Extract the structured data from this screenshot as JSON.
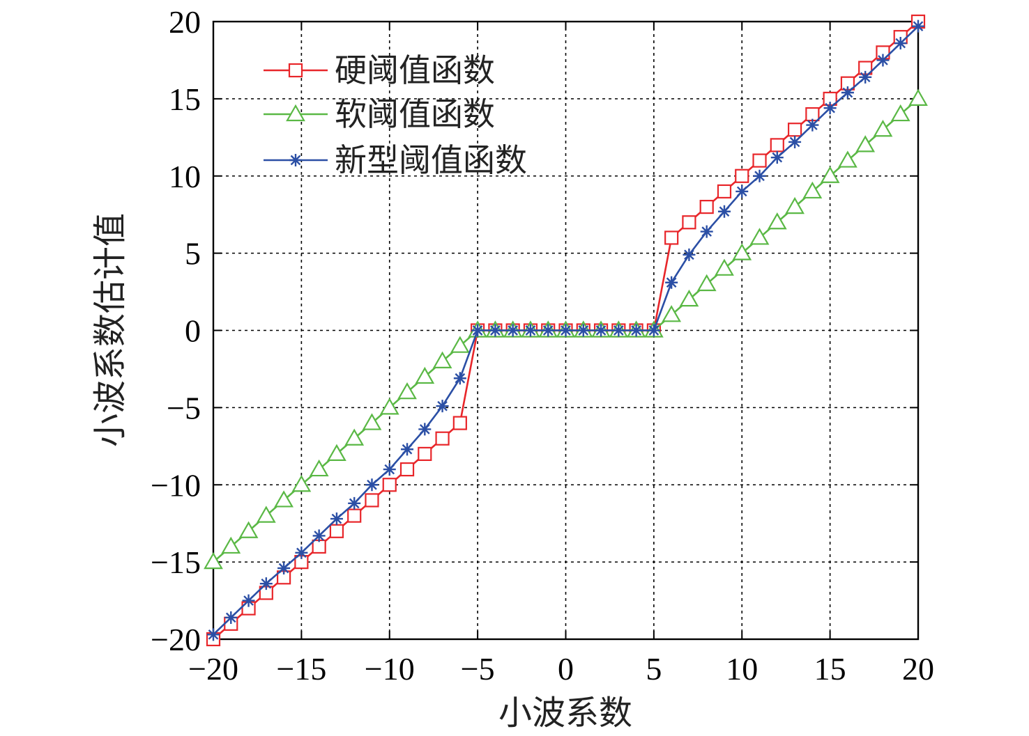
{
  "chart_data": {
    "type": "line",
    "title": "",
    "xlabel": "小波系数",
    "ylabel": "小波系数估计值",
    "xlim": [
      -20,
      20
    ],
    "ylim": [
      -20,
      20
    ],
    "xticks": [
      "−20",
      "−15",
      "−10",
      "−5",
      "0",
      "5",
      "10",
      "15",
      "20"
    ],
    "yticks": [
      "20",
      "15",
      "10",
      "5",
      "0",
      "−5",
      "−10",
      "−15",
      "−20"
    ],
    "grid": true,
    "legend_position": "top-left",
    "x": [
      -20,
      -19,
      -18,
      -17,
      -16,
      -15,
      -14,
      -13,
      -12,
      -11,
      -10,
      -9,
      -8,
      -7,
      -6,
      -5,
      -4,
      -3,
      -2,
      -1,
      0,
      1,
      2,
      3,
      4,
      5,
      6,
      7,
      8,
      9,
      10,
      11,
      12,
      13,
      14,
      15,
      16,
      17,
      18,
      19,
      20
    ],
    "series": [
      {
        "name": "硬阈值函数",
        "color": "#e8262a",
        "marker": "square",
        "values": [
          -20,
          -19,
          -18,
          -17,
          -16,
          -15,
          -14,
          -13,
          -12,
          -11,
          -10,
          -9,
          -8,
          -7,
          -6,
          0,
          0,
          0,
          0,
          0,
          0,
          0,
          0,
          0,
          0,
          0,
          6,
          7,
          8,
          9,
          10,
          11,
          12,
          13,
          14,
          15,
          16,
          17,
          18,
          19,
          20
        ]
      },
      {
        "name": "软阈值函数",
        "color": "#5ab845",
        "marker": "triangle",
        "values": [
          -15,
          -14,
          -13,
          -12,
          -11,
          -10,
          -9,
          -8,
          -7,
          -6,
          -5,
          -4,
          -3,
          -2,
          -1,
          0,
          0,
          0,
          0,
          0,
          0,
          0,
          0,
          0,
          0,
          0,
          1,
          2,
          3,
          4,
          5,
          6,
          7,
          8,
          9,
          10,
          11,
          12,
          13,
          14,
          15
        ]
      },
      {
        "name": "新型阈值函数",
        "color": "#2b4fa5",
        "marker": "star",
        "values": [
          -19.7,
          -18.6,
          -17.5,
          -16.4,
          -15.4,
          -14.4,
          -13.3,
          -12.2,
          -11.2,
          -10.0,
          -9.0,
          -7.7,
          -6.4,
          -4.9,
          -3.1,
          0,
          0,
          0,
          0,
          0,
          0,
          0,
          0,
          0,
          0,
          0,
          3.1,
          4.9,
          6.4,
          7.7,
          9.0,
          10.0,
          11.2,
          12.2,
          13.3,
          14.4,
          15.4,
          16.4,
          17.5,
          18.6,
          19.7
        ]
      }
    ]
  }
}
